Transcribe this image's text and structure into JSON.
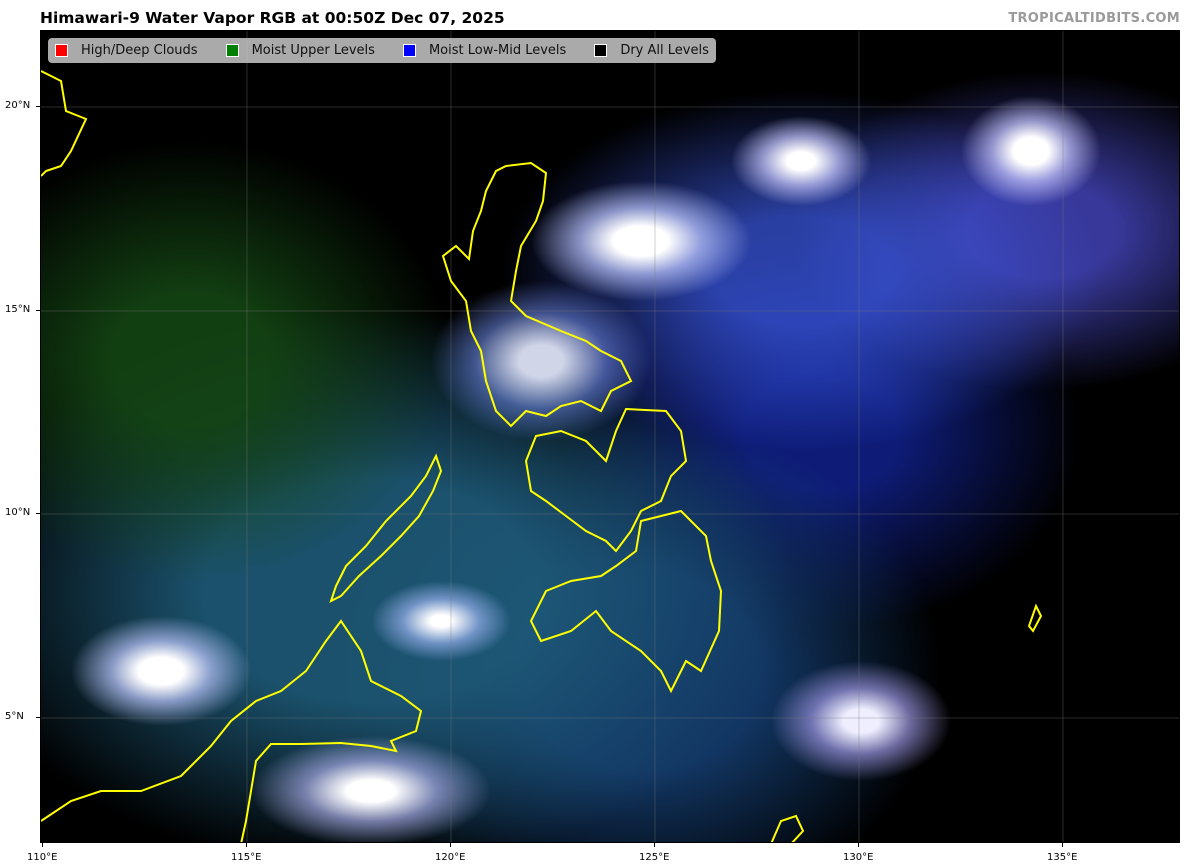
{
  "title": "Himawari-9 Water Vapor RGB at 00:50Z Dec 07, 2025",
  "credit": "TROPICALTIDBITS.COM",
  "legend": [
    {
      "label": "High/Deep Clouds",
      "color": "#ff0000"
    },
    {
      "label": "Moist Upper Levels",
      "color": "#008000"
    },
    {
      "label": "Moist Low-Mid Levels",
      "color": "#0000ff"
    },
    {
      "label": "Dry All Levels",
      "color": "#000000"
    }
  ],
  "axes": {
    "lat_labels": [
      "20°N",
      "15°N",
      "10°N",
      "5°N"
    ],
    "lon_labels": [
      "110°E",
      "115°E",
      "120°E",
      "125°E",
      "130°E",
      "135°E"
    ]
  },
  "coastline_color": "#ffff00"
}
